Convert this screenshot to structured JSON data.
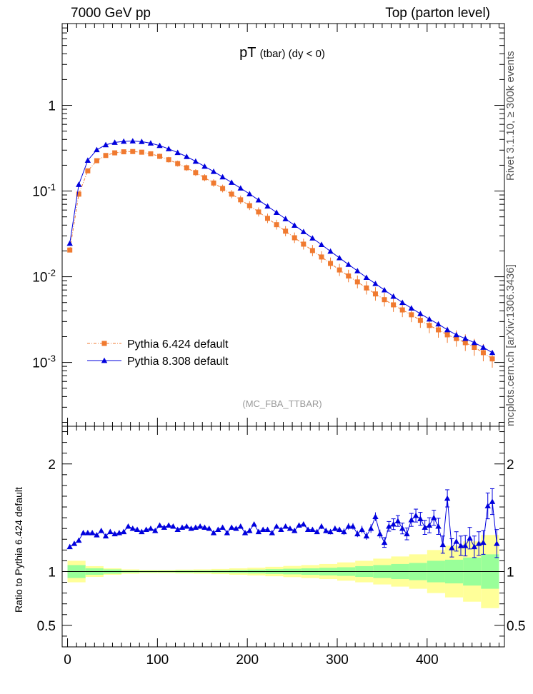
{
  "header": {
    "left": "7000 GeV pp",
    "right": "Top (parton level)"
  },
  "side_labels": {
    "rivet": "Rivet 3.1.10, ≥ 300k events",
    "mcplots": "mcplots.cern.ch [arXiv:1306.3436]"
  },
  "colors": {
    "pythia6": "#f07a30",
    "pythia8": "#0000dd",
    "band_inner": "#99ff99",
    "band_outer": "#ffff99"
  },
  "chart_data": [
    {
      "type": "scatter",
      "title": "pT",
      "title_sub": "(tbar)",
      "title_extra": "(dy < 0)",
      "watermark": "(MC_FBA_TTBAR)",
      "yscale": "log",
      "ylim": [
        0.00018,
        9
      ],
      "xlim": [
        -6,
        486
      ],
      "ytick_labels": {
        "1": "1",
        "0.1": "10^-1",
        "0.01": "10^-2",
        "0.001": "10^-3"
      },
      "legend_position": "lower-left",
      "series": [
        {
          "name": "Pythia 6.424 default",
          "marker": "square",
          "x": [
            2.5,
            12.5,
            22.5,
            32.5,
            42.5,
            52.5,
            62.5,
            72.5,
            82.5,
            92.5,
            102.5,
            112.5,
            122.5,
            132.5,
            142.5,
            152.5,
            162.5,
            172.5,
            182.5,
            192.5,
            202.5,
            212.5,
            222.5,
            232.5,
            242.5,
            252.5,
            262.5,
            272.5,
            282.5,
            292.5,
            302.5,
            312.5,
            322.5,
            332.5,
            342.5,
            352.5,
            362.5,
            372.5,
            382.5,
            392.5,
            402.5,
            412.5,
            422.5,
            432.5,
            442.5,
            452.5,
            462.5,
            472.5
          ],
          "y": [
            0.0205,
            0.092,
            0.172,
            0.226,
            0.26,
            0.279,
            0.287,
            0.289,
            0.284,
            0.272,
            0.254,
            0.232,
            0.209,
            0.187,
            0.164,
            0.143,
            0.124,
            0.107,
            0.092,
            0.079,
            0.0675,
            0.057,
            0.048,
            0.0405,
            0.034,
            0.0285,
            0.024,
            0.0202,
            0.017,
            0.0143,
            0.012,
            0.0102,
            0.0087,
            0.0074,
            0.0063,
            0.0054,
            0.0047,
            0.0041,
            0.0036,
            0.0031,
            0.0027,
            0.0024,
            0.0021,
            0.0019,
            0.0017,
            0.0015,
            0.0013,
            0.0011
          ]
        },
        {
          "name": "Pythia 8.308 default",
          "marker": "triangle",
          "x": [
            2.5,
            12.5,
            22.5,
            32.5,
            42.5,
            52.5,
            62.5,
            72.5,
            82.5,
            92.5,
            102.5,
            112.5,
            122.5,
            132.5,
            142.5,
            152.5,
            162.5,
            172.5,
            182.5,
            192.5,
            202.5,
            212.5,
            222.5,
            232.5,
            242.5,
            252.5,
            262.5,
            272.5,
            282.5,
            292.5,
            302.5,
            312.5,
            322.5,
            332.5,
            342.5,
            352.5,
            362.5,
            372.5,
            382.5,
            392.5,
            402.5,
            412.5,
            422.5,
            432.5,
            442.5,
            452.5,
            462.5,
            472.5
          ],
          "y": [
            0.0245,
            0.119,
            0.228,
            0.303,
            0.346,
            0.369,
            0.38,
            0.383,
            0.377,
            0.362,
            0.339,
            0.311,
            0.281,
            0.252,
            0.222,
            0.194,
            0.169,
            0.146,
            0.126,
            0.108,
            0.0925,
            0.0785,
            0.0665,
            0.0562,
            0.0474,
            0.0398,
            0.0335,
            0.0282,
            0.0237,
            0.0198,
            0.0166,
            0.0139,
            0.0117,
            0.0098,
            0.0083,
            0.007,
            0.0059,
            0.005,
            0.0043,
            0.0037,
            0.0032,
            0.0028,
            0.0024,
            0.0021,
            0.0019,
            0.0017,
            0.0015,
            0.0013
          ]
        }
      ]
    },
    {
      "type": "scatter",
      "ylabel": "Ratio to Pythia 6.424 default",
      "xlabel": "",
      "ylim": [
        0.3,
        2.35
      ],
      "xlim": [
        -6,
        486
      ],
      "yticks": [
        0.5,
        1,
        2
      ],
      "ytick_labels": [
        "0.5",
        "1",
        "2"
      ],
      "xticks": [
        0,
        100,
        200,
        300,
        400
      ],
      "xtick_labels": [
        "0",
        "100",
        "200",
        "300",
        "400"
      ],
      "reference": 1,
      "bands": {
        "x_edges": [
          0,
          20,
          40,
          60,
          80,
          100,
          120,
          140,
          160,
          180,
          200,
          220,
          240,
          260,
          280,
          300,
          320,
          340,
          360,
          380,
          400,
          420,
          440,
          460,
          480
        ],
        "inner_halfwidth": [
          0.06,
          0.03,
          0.02,
          0.01,
          0.008,
          0.008,
          0.01,
          0.01,
          0.012,
          0.015,
          0.018,
          0.022,
          0.026,
          0.03,
          0.035,
          0.04,
          0.05,
          0.06,
          0.07,
          0.08,
          0.1,
          0.11,
          0.13,
          0.16
        ],
        "outer_halfwidth": [
          0.1,
          0.05,
          0.03,
          0.02,
          0.015,
          0.015,
          0.018,
          0.02,
          0.024,
          0.03,
          0.036,
          0.044,
          0.052,
          0.06,
          0.07,
          0.085,
          0.1,
          0.12,
          0.14,
          0.16,
          0.2,
          0.24,
          0.28,
          0.34
        ]
      },
      "series": [
        {
          "name": "Pythia 8.308 / Pythia 6.424",
          "marker": "triangle",
          "x": [
            2.5,
            7.5,
            12.5,
            17.5,
            22.5,
            27.5,
            32.5,
            37.5,
            42.5,
            47.5,
            52.5,
            57.5,
            62.5,
            67.5,
            72.5,
            77.5,
            82.5,
            87.5,
            92.5,
            97.5,
            102.5,
            107.5,
            112.5,
            117.5,
            122.5,
            127.5,
            132.5,
            137.5,
            142.5,
            147.5,
            152.5,
            157.5,
            162.5,
            167.5,
            172.5,
            177.5,
            182.5,
            187.5,
            192.5,
            197.5,
            202.5,
            207.5,
            212.5,
            217.5,
            222.5,
            227.5,
            232.5,
            237.5,
            242.5,
            247.5,
            252.5,
            257.5,
            262.5,
            267.5,
            272.5,
            277.5,
            282.5,
            287.5,
            292.5,
            297.5,
            302.5,
            307.5,
            312.5,
            317.5,
            322.5,
            327.5,
            332.5,
            337.5,
            342.5,
            347.5,
            352.5,
            357.5,
            362.5,
            367.5,
            372.5,
            377.5,
            382.5,
            387.5,
            392.5,
            397.5,
            402.5,
            407.5,
            412.5,
            417.5,
            422.5,
            427.5,
            432.5,
            437.5,
            442.5,
            447.5,
            452.5,
            457.5,
            462.5,
            467.5,
            472.5,
            477.5
          ],
          "y": [
            1.23,
            1.26,
            1.29,
            1.36,
            1.36,
            1.36,
            1.34,
            1.38,
            1.33,
            1.37,
            1.35,
            1.36,
            1.37,
            1.42,
            1.4,
            1.39,
            1.37,
            1.39,
            1.4,
            1.38,
            1.43,
            1.41,
            1.43,
            1.42,
            1.39,
            1.41,
            1.42,
            1.4,
            1.41,
            1.42,
            1.41,
            1.4,
            1.36,
            1.39,
            1.41,
            1.36,
            1.41,
            1.4,
            1.42,
            1.36,
            1.38,
            1.44,
            1.37,
            1.39,
            1.39,
            1.36,
            1.42,
            1.39,
            1.42,
            1.4,
            1.38,
            1.43,
            1.44,
            1.39,
            1.39,
            1.37,
            1.42,
            1.38,
            1.37,
            1.4,
            1.39,
            1.37,
            1.42,
            1.42,
            1.35,
            1.39,
            1.33,
            1.4,
            1.51,
            1.35,
            1.27,
            1.42,
            1.44,
            1.47,
            1.4,
            1.35,
            1.48,
            1.52,
            1.49,
            1.41,
            1.43,
            1.5,
            1.42,
            1.25,
            1.68,
            1.22,
            1.28,
            1.24,
            1.24,
            1.31,
            1.23,
            1.26,
            1.27,
            1.61,
            1.65,
            1.26
          ],
          "yerr": [
            0.02,
            0.02,
            0.02,
            0.015,
            0.015,
            0.015,
            0.015,
            0.015,
            0.015,
            0.015,
            0.015,
            0.015,
            0.015,
            0.015,
            0.015,
            0.015,
            0.015,
            0.015,
            0.015,
            0.015,
            0.015,
            0.015,
            0.015,
            0.015,
            0.015,
            0.015,
            0.015,
            0.015,
            0.015,
            0.015,
            0.015,
            0.015,
            0.015,
            0.015,
            0.015,
            0.015,
            0.015,
            0.015,
            0.015,
            0.015,
            0.015,
            0.015,
            0.015,
            0.015,
            0.015,
            0.015,
            0.015,
            0.015,
            0.02,
            0.02,
            0.02,
            0.02,
            0.02,
            0.02,
            0.02,
            0.02,
            0.025,
            0.025,
            0.025,
            0.025,
            0.025,
            0.03,
            0.03,
            0.03,
            0.03,
            0.035,
            0.035,
            0.04,
            0.04,
            0.04,
            0.045,
            0.045,
            0.05,
            0.05,
            0.05,
            0.055,
            0.06,
            0.06,
            0.06,
            0.065,
            0.07,
            0.07,
            0.075,
            0.08,
            0.08,
            0.085,
            0.09,
            0.09,
            0.095,
            0.1,
            0.1,
            0.11,
            0.11,
            0.12,
            0.12,
            0.13
          ]
        }
      ]
    }
  ]
}
